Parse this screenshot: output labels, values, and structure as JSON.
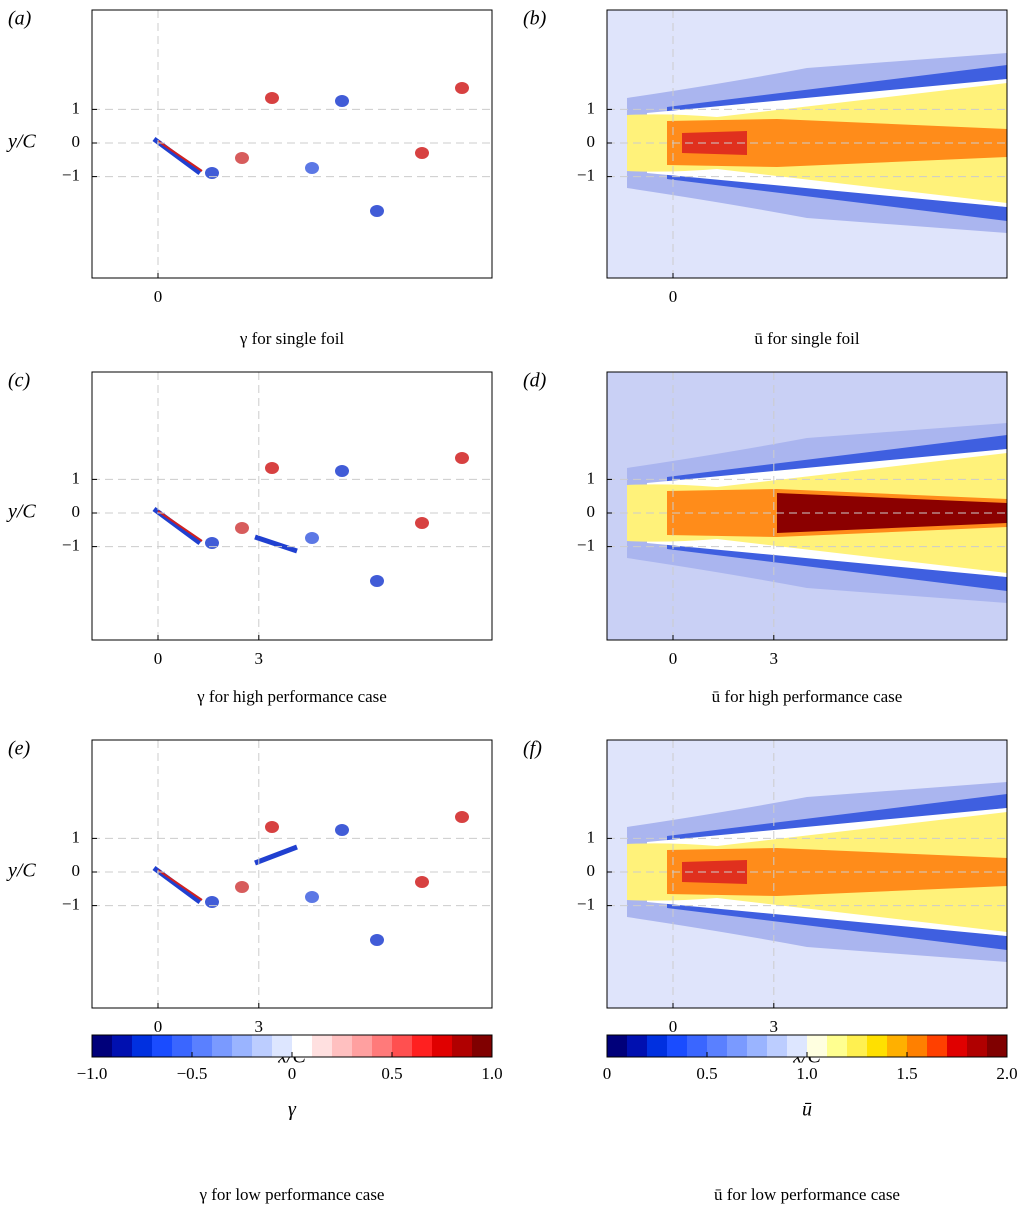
{
  "panels": [
    {
      "label": "(a)",
      "ylabel": "y/C",
      "yticks": [
        "1",
        "0",
        "−1"
      ],
      "xticks": [
        "0"
      ],
      "caption": "γ for single foil"
    },
    {
      "label": "(b)",
      "yticks": [
        "1",
        "0",
        "−1"
      ],
      "xticks": [
        "0"
      ],
      "caption": "ū for single foil"
    },
    {
      "label": "(c)",
      "ylabel": "y/C",
      "yticks": [
        "1",
        "0",
        "−1"
      ],
      "xticks": [
        "0",
        "3"
      ],
      "caption": "γ for high performance case"
    },
    {
      "label": "(d)",
      "yticks": [
        "1",
        "0",
        "−1"
      ],
      "xticks": [
        "0",
        "3"
      ],
      "caption": "ū for high performance case"
    },
    {
      "label": "(e)",
      "ylabel": "y/C",
      "xlabel": "x/C",
      "yticks": [
        "1",
        "0",
        "−1"
      ],
      "xticks": [
        "0",
        "3"
      ],
      "caption": "γ for low performance case"
    },
    {
      "label": "(f)",
      "xlabel": "x/C",
      "yticks": [
        "1",
        "0",
        "−1"
      ],
      "xticks": [
        "0",
        "3"
      ],
      "caption": "ū for low performance case"
    }
  ],
  "colorbars": [
    {
      "ticks": [
        "−1.0",
        "−0.5",
        "0",
        "0.5",
        "1.0"
      ],
      "label": "γ"
    },
    {
      "ticks": [
        "0",
        "0.5",
        "1.0",
        "1.5",
        "2.0"
      ],
      "label": "ū"
    }
  ]
}
